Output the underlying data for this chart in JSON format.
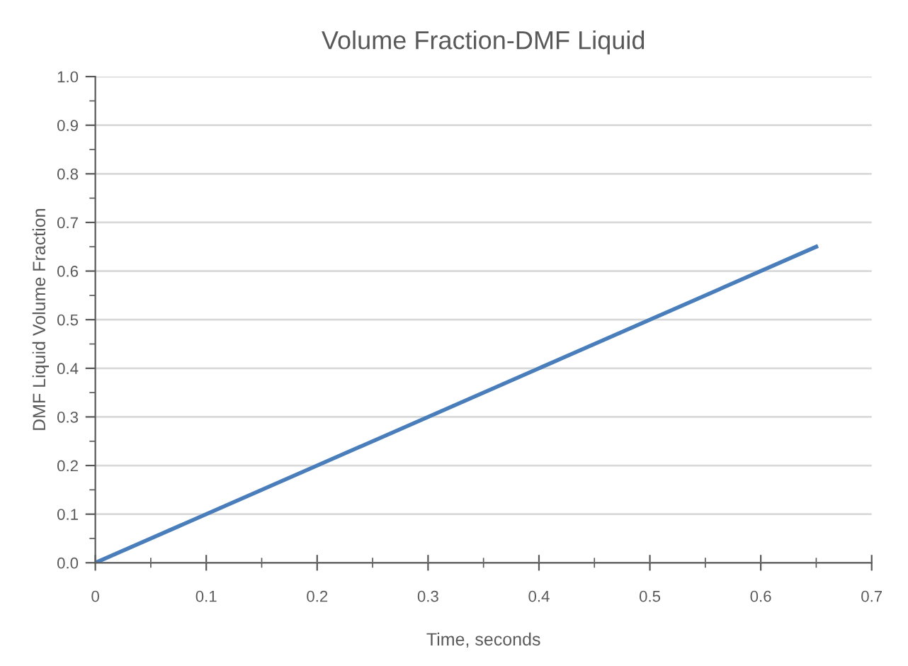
{
  "chart_data": {
    "type": "line",
    "title": "Volume Fraction-DMF Liquid",
    "xlabel": "Time, seconds",
    "ylabel": "DMF Liquid Volume Fraction",
    "x": [
      0,
      0.65
    ],
    "series": [
      {
        "color": "#4a7ebb",
        "values": [
          0,
          0.65
        ]
      }
    ],
    "xlim": [
      0,
      0.7
    ],
    "ylim": [
      0,
      1.0
    ],
    "xticks": [
      0,
      {
        "value": 0.05,
        "label": null
      },
      0.1,
      {
        "value": 0.15,
        "label": null
      },
      0.2,
      {
        "value": 0.25,
        "label": null
      },
      0.3,
      {
        "value": 0.35,
        "label": null
      },
      0.4,
      {
        "value": 0.45,
        "label": null
      },
      0.5,
      {
        "value": 0.55,
        "label": null
      },
      0.6,
      {
        "value": 0.65,
        "label": null
      },
      0.7
    ],
    "yticks": [
      {
        "value": 0,
        "label": "0.0"
      },
      {
        "value": 0.05,
        "label": null
      },
      0.1,
      {
        "value": 0.15,
        "label": null
      },
      0.2,
      {
        "value": 0.25,
        "label": null
      },
      0.3,
      {
        "value": 0.35,
        "label": null
      },
      0.4,
      {
        "value": 0.45,
        "label": null
      },
      0.5,
      {
        "value": 0.55,
        "label": null
      },
      0.6,
      {
        "value": 0.65,
        "label": null
      },
      0.7,
      {
        "value": 0.75,
        "label": null
      },
      0.8,
      {
        "value": 0.85,
        "label": null
      },
      0.9,
      {
        "value": 0.95,
        "label": null
      },
      {
        "value": 1.0,
        "label": "1.0"
      }
    ],
    "grid": "y",
    "legend": false,
    "marker": "none",
    "line_style": "solid"
  }
}
